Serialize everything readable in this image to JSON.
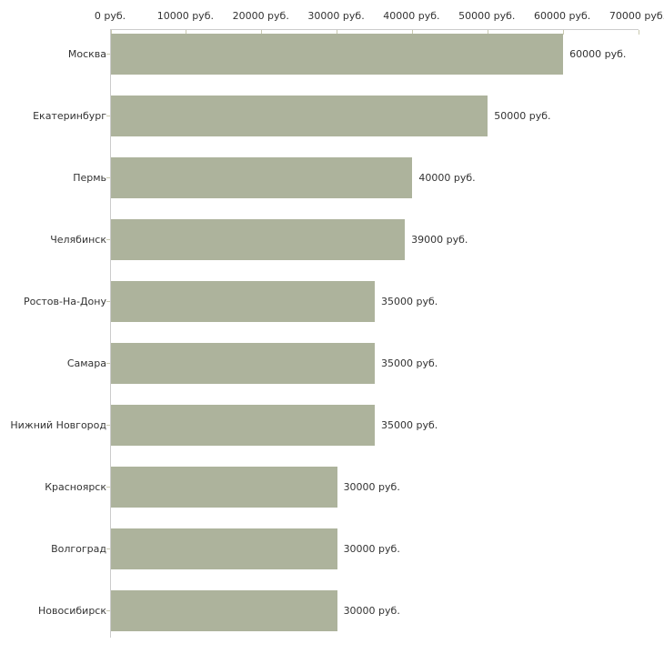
{
  "chart_data": {
    "type": "bar",
    "orientation": "horizontal",
    "title": "",
    "xlabel": "",
    "ylabel": "",
    "unit": "руб.",
    "categories": [
      "Москва",
      "Екатеринбург",
      "Пермь",
      "Челябинск",
      "Ростов-На-Дону",
      "Самара",
      "Нижний Новгород",
      "Красноярск",
      "Волгоград",
      "Новосибирск"
    ],
    "values": [
      60000,
      50000,
      40000,
      39000,
      35000,
      35000,
      35000,
      30000,
      30000,
      30000
    ],
    "bar_labels": [
      "60000 руб.",
      "50000 руб.",
      "40000 руб.",
      "39000 руб.",
      "35000 руб.",
      "35000 руб.",
      "35000 руб.",
      "30000 руб.",
      "30000 руб.",
      "30000 руб."
    ],
    "x_ticks": [
      0,
      10000,
      20000,
      30000,
      40000,
      50000,
      60000,
      70000
    ],
    "x_tick_labels": [
      "0 руб.",
      "10000 руб.",
      "20000 руб.",
      "30000 руб.",
      "40000 руб.",
      "50000 руб.",
      "60000 руб.",
      "70000 руб."
    ],
    "xlim": [
      0,
      70000
    ],
    "axis_position": "top",
    "grid": false,
    "legend": false,
    "colors": {
      "bar_fill": "#adb39c",
      "axis_line": "#cccccc",
      "tick_mark": "#c9c9b0",
      "text": "#333333",
      "background": "#ffffff"
    }
  }
}
